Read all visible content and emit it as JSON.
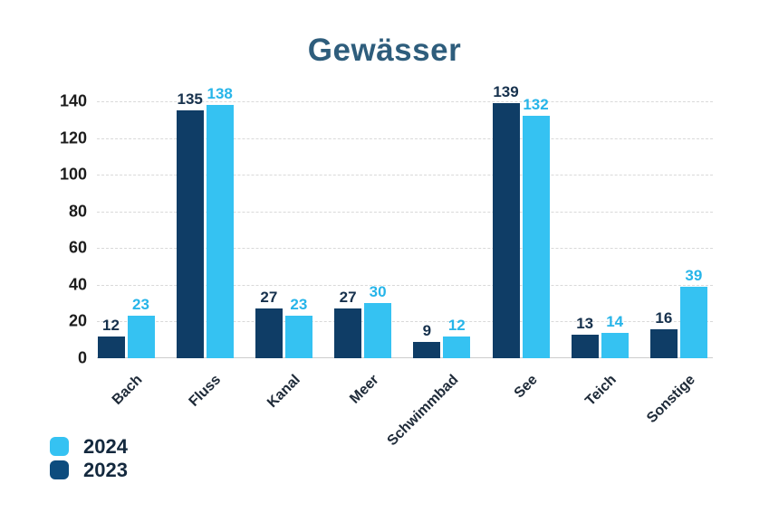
{
  "page": {
    "background": "#ffffff"
  },
  "chart_data": {
    "type": "bar",
    "title": "Gewässer",
    "title_color": "#2e5d7c",
    "categories": [
      "Bach",
      "Fluss",
      "Kanal",
      "Meer",
      "Schwimmbad",
      "See",
      "Teich",
      "Sonstige"
    ],
    "series": [
      {
        "name": "2023",
        "color": "#0f3d66",
        "label_color": "#16314d",
        "values": [
          12,
          135,
          27,
          27,
          9,
          139,
          13,
          16
        ]
      },
      {
        "name": "2024",
        "color": "#35c2f2",
        "label_color": "#27b5e9",
        "values": [
          23,
          138,
          23,
          30,
          12,
          132,
          14,
          39
        ]
      }
    ],
    "bar_order": [
      "2023",
      "2024"
    ],
    "ylim": [
      0,
      140
    ],
    "yticks": [
      0,
      20,
      40,
      60,
      80,
      100,
      120,
      140
    ],
    "grid": "horizontal-dashed",
    "gridline_color": "#d9d9d9",
    "axis_tick_color": "#1c1c1c",
    "x_label_color": "#1e2a38",
    "xlabel": "",
    "ylabel": "",
    "legend": {
      "position": "bottom-left",
      "label_color": "#14293e",
      "items": [
        {
          "label": "2024",
          "color": "#35c2f2"
        },
        {
          "label": "2023",
          "color": "#0d4c7e"
        }
      ]
    }
  }
}
